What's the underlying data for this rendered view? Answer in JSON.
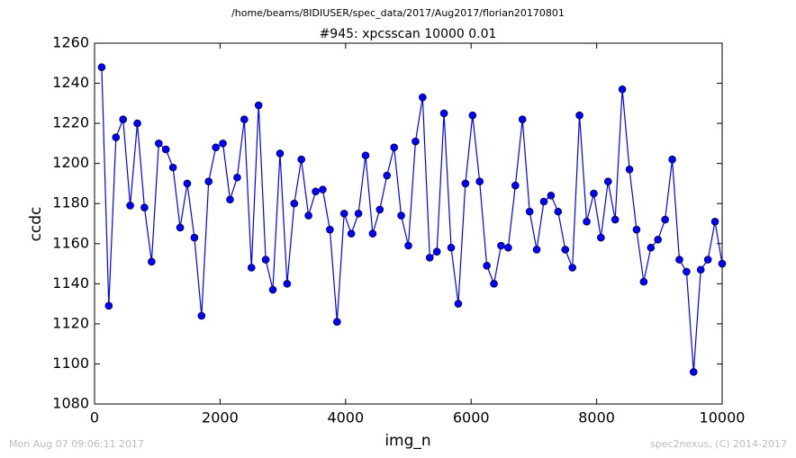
{
  "chart_data": {
    "type": "line",
    "suptitle": "/home/beams/8IDIUSER/spec_data/2017/Aug2017/florian20170801",
    "title": "#945: xpcsscan 10000 0.01",
    "xlabel": "img_n",
    "ylabel": "ccdc",
    "footer_left": "Mon Aug 07 09:06:11 2017",
    "footer_right": "spec2nexus, (C) 2014-2017",
    "x": [
      114,
      227,
      341,
      455,
      568,
      682,
      795,
      909,
      1023,
      1136,
      1250,
      1364,
      1477,
      1591,
      1705,
      1818,
      1932,
      2045,
      2159,
      2273,
      2386,
      2500,
      2614,
      2727,
      2841,
      2955,
      3068,
      3182,
      3295,
      3409,
      3523,
      3636,
      3750,
      3864,
      3977,
      4091,
      4205,
      4318,
      4432,
      4545,
      4659,
      4773,
      4886,
      5000,
      5114,
      5227,
      5341,
      5455,
      5568,
      5682,
      5795,
      5909,
      6023,
      6136,
      6250,
      6364,
      6477,
      6591,
      6705,
      6818,
      6932,
      7045,
      7159,
      7273,
      7386,
      7500,
      7614,
      7727,
      7841,
      7955,
      8068,
      8182,
      8295,
      8409,
      8523,
      8636,
      8750,
      8864,
      8977,
      9091,
      9205,
      9318,
      9432,
      9545,
      9659,
      9773,
      9886,
      10000
    ],
    "series": [
      {
        "color": "#0000ff",
        "values": [
          1248,
          1129,
          1213,
          1222,
          1179,
          1220,
          1178,
          1151,
          1210,
          1207,
          1198,
          1168,
          1190,
          1163,
          1124,
          1191,
          1208,
          1210,
          1182,
          1193,
          1222,
          1148,
          1229,
          1152,
          1137,
          1205,
          1140,
          1180,
          1202,
          1174,
          1186,
          1187,
          1167,
          1121,
          1175,
          1165,
          1175,
          1204,
          1165,
          1177,
          1194,
          1208,
          1174,
          1159,
          1211,
          1233,
          1153,
          1156,
          1225,
          1158,
          1130,
          1190,
          1224,
          1191,
          1149,
          1140,
          1159,
          1158,
          1189,
          1222,
          1176,
          1157,
          1181,
          1184,
          1176,
          1157,
          1148,
          1224,
          1171,
          1185,
          1163,
          1191,
          1172,
          1237,
          1197,
          1167,
          1141,
          1158,
          1162,
          1172,
          1202,
          1152,
          1146,
          1096,
          1147,
          1152,
          1171,
          1150
        ]
      }
    ],
    "xlim": [
      0,
      10000
    ],
    "xticks": [
      0,
      2000,
      4000,
      6000,
      8000,
      10000
    ],
    "ylim": [
      1080,
      1260
    ],
    "yticks": [
      1080,
      1100,
      1120,
      1140,
      1160,
      1180,
      1200,
      1220,
      1240,
      1260
    ]
  }
}
